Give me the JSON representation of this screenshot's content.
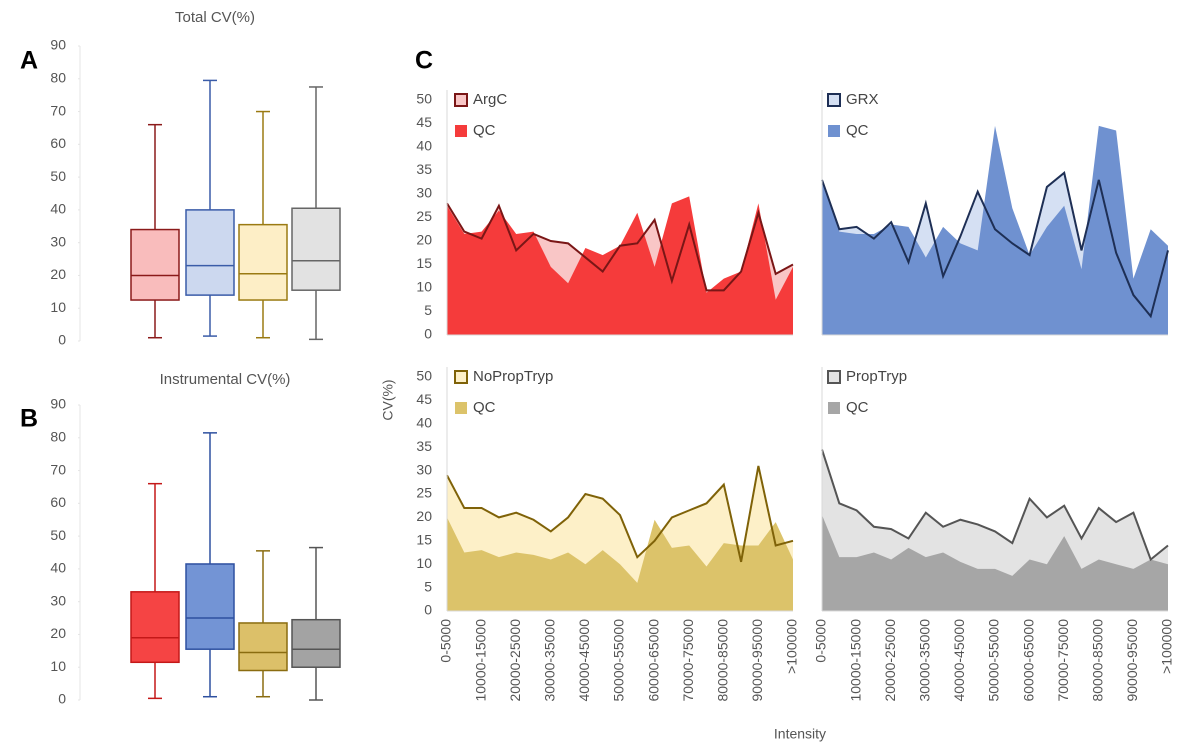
{
  "shared_axes": {
    "ylabel": "CV(%)",
    "xlabel": "Intensity"
  },
  "chart_data": [
    {
      "type": "box",
      "panel": "A",
      "title": "Total CV(%)",
      "ylim": [
        0,
        90
      ],
      "yticks": [
        0,
        10,
        20,
        30,
        40,
        50,
        60,
        70,
        80,
        90
      ],
      "boxes": [
        {
          "min": 1,
          "q1": 12.5,
          "median": 20,
          "q3": 34,
          "max": 66,
          "fill": "#f9bcbc",
          "color": "#8b1a1a"
        },
        {
          "min": 1.5,
          "q1": 14,
          "median": 23,
          "q3": 40,
          "max": 79.5,
          "fill": "#ccd8ef",
          "color": "#3a5ca8"
        },
        {
          "min": 1,
          "q1": 12.5,
          "median": 20.5,
          "q3": 35.5,
          "max": 70,
          "fill": "#fdeec6",
          "color": "#9a7a12"
        },
        {
          "min": 0.5,
          "q1": 15.5,
          "median": 24.5,
          "q3": 40.5,
          "max": 77.5,
          "fill": "#e2e2e2",
          "color": "#666666"
        }
      ]
    },
    {
      "type": "box",
      "panel": "B",
      "title": "Instrumental CV(%)",
      "ylim": [
        0,
        90
      ],
      "yticks": [
        0,
        10,
        20,
        30,
        40,
        50,
        60,
        70,
        80,
        90
      ],
      "boxes": [
        {
          "min": 0.5,
          "q1": 11.5,
          "median": 19,
          "q3": 33,
          "max": 66,
          "fill": "#f54444",
          "color": "#c41818"
        },
        {
          "min": 1,
          "q1": 15.5,
          "median": 25,
          "q3": 41.5,
          "max": 81.5,
          "fill": "#7394d5",
          "color": "#2e50a0"
        },
        {
          "min": 1,
          "q1": 9,
          "median": 14.5,
          "q3": 23.5,
          "max": 45.5,
          "fill": "#dcc069",
          "color": "#8a6c10"
        },
        {
          "min": 0,
          "q1": 10,
          "median": 15.5,
          "q3": 24.5,
          "max": 46.5,
          "fill": "#a3a3a3",
          "color": "#555555"
        }
      ]
    },
    {
      "type": "area",
      "panel": "C",
      "ylim": [
        0,
        50
      ],
      "yticks": [
        0,
        5,
        10,
        15,
        20,
        25,
        30,
        35,
        40,
        45,
        50
      ],
      "series": [
        {
          "name": "ArgC",
          "color": "#f9c6c6",
          "line_color": "#7a1616",
          "values": [
            28,
            22,
            20.5,
            27.5,
            18,
            21.5,
            20,
            19.5,
            16.5,
            13.5,
            19,
            19.5,
            24.5,
            11.5,
            23.5,
            9.5,
            9.5,
            13.5,
            26,
            13,
            15
          ]
        },
        {
          "name": "QC",
          "color": "#f53b3b",
          "values": [
            27.5,
            21.5,
            22,
            26.5,
            21.5,
            22,
            14.5,
            11,
            18.5,
            17,
            19,
            26,
            14.5,
            28,
            29.5,
            9,
            12,
            13.5,
            28,
            7.5,
            14.5
          ]
        }
      ]
    },
    {
      "type": "area",
      "ylim": [
        0,
        50
      ],
      "series": [
        {
          "name": "GRX",
          "color": "#d5e0f3",
          "line_color": "#1e2f55",
          "values": [
            33,
            22.5,
            23,
            20.5,
            24,
            15.5,
            28,
            12.5,
            21,
            30.5,
            22.5,
            19.5,
            17,
            31.5,
            34.5,
            18,
            33,
            17.5,
            8.5,
            4,
            18
          ]
        },
        {
          "name": "QC",
          "color": "#6f91d0",
          "values": [
            33,
            22,
            21.5,
            21.5,
            23.5,
            23,
            16.5,
            23,
            19.5,
            18,
            44.5,
            27,
            17,
            23,
            27.5,
            14,
            44.5,
            43.5,
            12,
            22.5,
            19
          ]
        }
      ]
    },
    {
      "type": "area",
      "ylim": [
        0,
        50
      ],
      "yticks": [
        0,
        5,
        10,
        15,
        20,
        25,
        30,
        35,
        40,
        45,
        50
      ],
      "categories": [
        "0-5000",
        null,
        "10000-15000",
        null,
        "20000-25000",
        null,
        "30000-35000",
        null,
        "40000-45000",
        null,
        "50000-55000",
        null,
        "60000-65000",
        null,
        "70000-75000",
        null,
        "80000-85000",
        null,
        "90000-95000",
        null,
        ">100000"
      ],
      "series": [
        {
          "name": "NoPropTryp",
          "color": "#fdf0c8",
          "line_color": "#7f6208",
          "values": [
            29,
            22,
            22,
            20,
            21,
            19.5,
            17,
            20,
            25,
            24,
            20.5,
            11.5,
            15,
            20,
            21.5,
            23,
            27,
            10.5,
            31,
            14,
            15
          ]
        },
        {
          "name": "QC",
          "color": "#dcc36a",
          "values": [
            20,
            12.5,
            13,
            11.5,
            12.5,
            12,
            11,
            12.5,
            10,
            13,
            10,
            6,
            19.5,
            13.5,
            14,
            9.5,
            14.5,
            14,
            14,
            19,
            11
          ]
        }
      ]
    },
    {
      "type": "area",
      "ylim": [
        0,
        50
      ],
      "categories": [
        "0-5000",
        null,
        "10000-15000",
        null,
        "20000-25000",
        null,
        "30000-35000",
        null,
        "40000-45000",
        null,
        "50000-55000",
        null,
        "60000-65000",
        null,
        "70000-75000",
        null,
        "80000-85000",
        null,
        "90000-95000",
        null,
        ">100000"
      ],
      "series": [
        {
          "name": "PropTryp",
          "color": "#e3e3e3",
          "line_color": "#555555",
          "values": [
            34.5,
            23,
            21.5,
            18,
            17.5,
            15.5,
            21,
            18,
            19.5,
            18.5,
            17,
            14.5,
            24,
            20,
            22.5,
            15.5,
            22,
            19,
            21,
            11,
            14
          ]
        },
        {
          "name": "QC",
          "color": "#a6a6a6",
          "values": [
            20.5,
            11.5,
            11.5,
            12.5,
            11,
            13.5,
            11.5,
            12.5,
            10.5,
            9,
            9,
            7.5,
            11,
            10,
            16,
            9,
            11,
            10,
            9,
            11,
            10
          ]
        }
      ]
    }
  ]
}
